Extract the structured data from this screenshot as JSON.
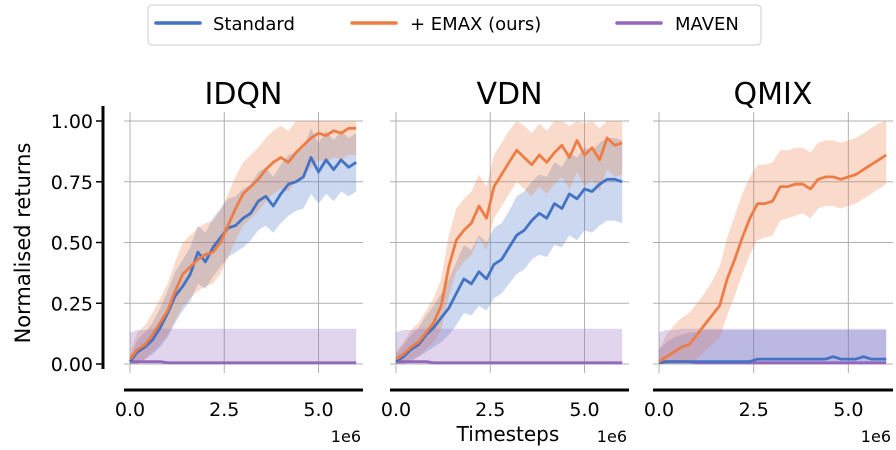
{
  "xlabel": "Timesteps",
  "ylabel": "Normalised returns",
  "legend": {
    "placement": "top-center",
    "entries": [
      {
        "name": "Standard",
        "color": "#4472c4"
      },
      {
        "name": "+ EMAX (ours)",
        "color": "#ed7d45"
      },
      {
        "name": "MAVEN",
        "color": "#9467bd"
      }
    ]
  },
  "chart_data": [
    {
      "type": "line",
      "title": "IDQN",
      "xlim": [
        0,
        6.1
      ],
      "ylim": [
        0,
        1.0
      ],
      "xticks": [
        "0.0",
        "2.5",
        "5.0"
      ],
      "xticks_values": [
        0,
        2.5,
        5.0
      ],
      "yticks": [
        "0.00",
        "0.25",
        "0.50",
        "0.75",
        "1.00"
      ],
      "yticks_values": [
        0,
        0.25,
        0.5,
        0.75,
        1.0
      ],
      "x_multiplier": "1e6",
      "grid": true,
      "x": [
        0,
        0.2,
        0.4,
        0.6,
        0.8,
        1.0,
        1.2,
        1.4,
        1.6,
        1.8,
        2.0,
        2.2,
        2.4,
        2.6,
        2.8,
        3.0,
        3.2,
        3.4,
        3.6,
        3.8,
        4.0,
        4.2,
        4.4,
        4.6,
        4.8,
        5.0,
        5.2,
        5.4,
        5.6,
        5.8,
        6.0
      ],
      "series": [
        {
          "name": "Standard",
          "color": "#4472c4",
          "values": [
            0.01,
            0.05,
            0.07,
            0.1,
            0.15,
            0.21,
            0.28,
            0.32,
            0.37,
            0.46,
            0.42,
            0.48,
            0.52,
            0.56,
            0.57,
            0.6,
            0.62,
            0.67,
            0.69,
            0.65,
            0.7,
            0.74,
            0.75,
            0.77,
            0.85,
            0.79,
            0.84,
            0.8,
            0.84,
            0.81,
            0.83
          ],
          "lower": [
            0,
            0,
            0.02,
            0.04,
            0.07,
            0.11,
            0.17,
            0.22,
            0.26,
            0.33,
            0.31,
            0.36,
            0.4,
            0.44,
            0.46,
            0.48,
            0.51,
            0.55,
            0.57,
            0.54,
            0.58,
            0.61,
            0.63,
            0.64,
            0.7,
            0.66,
            0.7,
            0.67,
            0.71,
            0.69,
            0.71
          ],
          "upper": [
            0.03,
            0.1,
            0.13,
            0.17,
            0.23,
            0.3,
            0.38,
            0.43,
            0.48,
            0.57,
            0.54,
            0.6,
            0.64,
            0.68,
            0.69,
            0.72,
            0.74,
            0.79,
            0.81,
            0.77,
            0.82,
            0.86,
            0.87,
            0.89,
            0.97,
            0.91,
            0.96,
            0.92,
            0.96,
            0.93,
            0.95
          ]
        },
        {
          "name": "+ EMAX (ours)",
          "color": "#ed7d45",
          "values": [
            0.02,
            0.06,
            0.08,
            0.12,
            0.17,
            0.22,
            0.3,
            0.37,
            0.4,
            0.43,
            0.45,
            0.46,
            0.5,
            0.57,
            0.64,
            0.7,
            0.73,
            0.76,
            0.8,
            0.83,
            0.85,
            0.83,
            0.87,
            0.9,
            0.93,
            0.95,
            0.94,
            0.96,
            0.95,
            0.97,
            0.97
          ],
          "lower": [
            0,
            0,
            0.02,
            0.05,
            0.08,
            0.12,
            0.18,
            0.24,
            0.27,
            0.3,
            0.32,
            0.33,
            0.37,
            0.44,
            0.51,
            0.57,
            0.6,
            0.63,
            0.67,
            0.7,
            0.72,
            0.71,
            0.75,
            0.78,
            0.81,
            0.84,
            0.83,
            0.85,
            0.84,
            0.86,
            0.86
          ],
          "upper": [
            0.05,
            0.13,
            0.16,
            0.21,
            0.27,
            0.33,
            0.42,
            0.5,
            0.53,
            0.56,
            0.58,
            0.59,
            0.63,
            0.7,
            0.77,
            0.83,
            0.86,
            0.89,
            0.93,
            0.96,
            0.98,
            0.96,
            1.0,
            1.0,
            1.0,
            1.0,
            1.0,
            1.0,
            1.0,
            1.0,
            1.0
          ]
        },
        {
          "name": "MAVEN",
          "color": "#9467bd",
          "values": [
            0.01,
            0.01,
            0.01,
            0.01,
            0.01,
            0.005,
            0.005,
            0.005,
            0.005,
            0.005,
            0.005,
            0.005,
            0.005,
            0.005,
            0.005,
            0.005,
            0.005,
            0.005,
            0.005,
            0.005,
            0.005,
            0.005,
            0.005,
            0.005,
            0.005,
            0.005,
            0.005,
            0.005,
            0.005,
            0.005,
            0.005
          ],
          "lower": [
            0,
            0,
            0,
            0,
            0,
            0,
            0,
            0,
            0,
            0,
            0,
            0,
            0,
            0,
            0,
            0,
            0,
            0,
            0,
            0,
            0,
            0,
            0,
            0,
            0,
            0,
            0,
            0,
            0,
            0,
            0
          ],
          "upper": [
            0.13,
            0.14,
            0.14,
            0.145,
            0.145,
            0.145,
            0.145,
            0.145,
            0.145,
            0.145,
            0.145,
            0.145,
            0.145,
            0.145,
            0.145,
            0.145,
            0.145,
            0.145,
            0.145,
            0.145,
            0.145,
            0.145,
            0.145,
            0.145,
            0.145,
            0.145,
            0.145,
            0.145,
            0.145,
            0.145,
            0.145
          ]
        }
      ]
    },
    {
      "type": "line",
      "title": "VDN",
      "xlim": [
        0,
        6.1
      ],
      "ylim": [
        0,
        1.0
      ],
      "xticks": [
        "0.0",
        "2.5",
        "5.0"
      ],
      "xticks_values": [
        0,
        2.5,
        5.0
      ],
      "yticks": [],
      "yticks_values": [
        0,
        0.25,
        0.5,
        0.75,
        1.0
      ],
      "x_multiplier": "1e6",
      "grid": true,
      "x": [
        0,
        0.2,
        0.4,
        0.6,
        0.8,
        1.0,
        1.2,
        1.4,
        1.6,
        1.8,
        2.0,
        2.2,
        2.4,
        2.6,
        2.8,
        3.0,
        3.2,
        3.4,
        3.6,
        3.8,
        4.0,
        4.2,
        4.4,
        4.6,
        4.8,
        5.0,
        5.2,
        5.4,
        5.6,
        5.8,
        6.0
      ],
      "series": [
        {
          "name": "Standard",
          "color": "#4472c4",
          "values": [
            0.01,
            0.03,
            0.06,
            0.08,
            0.12,
            0.15,
            0.19,
            0.23,
            0.29,
            0.35,
            0.33,
            0.38,
            0.35,
            0.41,
            0.43,
            0.48,
            0.53,
            0.55,
            0.59,
            0.62,
            0.6,
            0.66,
            0.64,
            0.7,
            0.68,
            0.72,
            0.71,
            0.74,
            0.76,
            0.76,
            0.75
          ],
          "lower": [
            0,
            0,
            0.01,
            0.03,
            0.05,
            0.07,
            0.09,
            0.12,
            0.16,
            0.21,
            0.2,
            0.24,
            0.22,
            0.27,
            0.29,
            0.33,
            0.37,
            0.39,
            0.43,
            0.45,
            0.44,
            0.49,
            0.48,
            0.53,
            0.51,
            0.55,
            0.54,
            0.57,
            0.59,
            0.59,
            0.58
          ],
          "upper": [
            0.04,
            0.08,
            0.12,
            0.15,
            0.2,
            0.24,
            0.29,
            0.35,
            0.42,
            0.49,
            0.47,
            0.53,
            0.5,
            0.56,
            0.58,
            0.63,
            0.69,
            0.71,
            0.75,
            0.78,
            0.77,
            0.83,
            0.81,
            0.87,
            0.85,
            0.89,
            0.88,
            0.91,
            0.93,
            0.93,
            0.92
          ]
        },
        {
          "name": "+ EMAX (ours)",
          "color": "#ed7d45",
          "values": [
            0.02,
            0.04,
            0.07,
            0.09,
            0.13,
            0.17,
            0.24,
            0.4,
            0.51,
            0.55,
            0.58,
            0.65,
            0.6,
            0.73,
            0.78,
            0.83,
            0.88,
            0.85,
            0.82,
            0.86,
            0.83,
            0.87,
            0.9,
            0.85,
            0.92,
            0.86,
            0.89,
            0.84,
            0.93,
            0.9,
            0.91
          ],
          "lower": [
            0,
            0,
            0.02,
            0.03,
            0.06,
            0.09,
            0.14,
            0.28,
            0.38,
            0.42,
            0.45,
            0.52,
            0.47,
            0.6,
            0.65,
            0.7,
            0.75,
            0.72,
            0.69,
            0.73,
            0.7,
            0.74,
            0.77,
            0.72,
            0.79,
            0.73,
            0.76,
            0.71,
            0.8,
            0.77,
            0.78
          ],
          "upper": [
            0.05,
            0.09,
            0.14,
            0.17,
            0.22,
            0.27,
            0.35,
            0.53,
            0.64,
            0.68,
            0.71,
            0.78,
            0.73,
            0.86,
            0.91,
            0.96,
            1.0,
            0.98,
            0.95,
            0.99,
            0.96,
            1.0,
            1.0,
            0.98,
            1.0,
            0.99,
            1.0,
            0.97,
            1.0,
            1.0,
            1.0
          ]
        },
        {
          "name": "MAVEN",
          "color": "#9467bd",
          "values": [
            0.01,
            0.01,
            0.01,
            0.01,
            0.01,
            0.005,
            0.005,
            0.005,
            0.005,
            0.005,
            0.005,
            0.005,
            0.005,
            0.005,
            0.005,
            0.005,
            0.005,
            0.005,
            0.005,
            0.005,
            0.005,
            0.005,
            0.005,
            0.005,
            0.005,
            0.005,
            0.005,
            0.005,
            0.005,
            0.005,
            0.005
          ],
          "lower": [
            0,
            0,
            0,
            0,
            0,
            0,
            0,
            0,
            0,
            0,
            0,
            0,
            0,
            0,
            0,
            0,
            0,
            0,
            0,
            0,
            0,
            0,
            0,
            0,
            0,
            0,
            0,
            0,
            0,
            0,
            0
          ],
          "upper": [
            0.13,
            0.14,
            0.14,
            0.145,
            0.145,
            0.145,
            0.145,
            0.145,
            0.145,
            0.145,
            0.145,
            0.145,
            0.145,
            0.145,
            0.145,
            0.145,
            0.145,
            0.145,
            0.145,
            0.145,
            0.145,
            0.145,
            0.145,
            0.145,
            0.145,
            0.145,
            0.145,
            0.145,
            0.145,
            0.145,
            0.145
          ]
        }
      ]
    },
    {
      "type": "line",
      "title": "QMIX",
      "xlim": [
        0,
        6.1
      ],
      "ylim": [
        0,
        1.0
      ],
      "xticks": [
        "0.0",
        "2.5",
        "5.0"
      ],
      "xticks_values": [
        0,
        2.5,
        5.0
      ],
      "yticks": [],
      "yticks_values": [
        0,
        0.25,
        0.5,
        0.75,
        1.0
      ],
      "x_multiplier": "1e6",
      "grid": true,
      "x": [
        0,
        0.2,
        0.4,
        0.6,
        0.8,
        1.0,
        1.2,
        1.4,
        1.6,
        1.8,
        2.0,
        2.2,
        2.4,
        2.6,
        2.8,
        3.0,
        3.2,
        3.4,
        3.6,
        3.8,
        4.0,
        4.2,
        4.4,
        4.6,
        4.8,
        5.0,
        5.2,
        5.4,
        5.6,
        5.8,
        6.0
      ],
      "series": [
        {
          "name": "Standard",
          "color": "#4472c4",
          "values": [
            0.005,
            0.01,
            0.01,
            0.01,
            0.01,
            0.01,
            0.01,
            0.01,
            0.01,
            0.01,
            0.01,
            0.01,
            0.01,
            0.02,
            0.02,
            0.02,
            0.02,
            0.02,
            0.02,
            0.02,
            0.02,
            0.02,
            0.02,
            0.03,
            0.02,
            0.02,
            0.02,
            0.03,
            0.02,
            0.02,
            0.02
          ],
          "lower": [
            0,
            0,
            0,
            0,
            0,
            0,
            0,
            0,
            0,
            0,
            0,
            0,
            0,
            0,
            0,
            0,
            0,
            0,
            0,
            0,
            0,
            0,
            0,
            0,
            0,
            0,
            0,
            0,
            0,
            0,
            0
          ],
          "upper": [
            0.06,
            0.09,
            0.11,
            0.12,
            0.13,
            0.13,
            0.14,
            0.14,
            0.14,
            0.14,
            0.14,
            0.14,
            0.14,
            0.14,
            0.14,
            0.14,
            0.14,
            0.14,
            0.14,
            0.14,
            0.14,
            0.14,
            0.14,
            0.14,
            0.14,
            0.14,
            0.14,
            0.14,
            0.14,
            0.14,
            0.14
          ]
        },
        {
          "name": "+ EMAX (ours)",
          "color": "#ed7d45",
          "values": [
            0.01,
            0.03,
            0.05,
            0.07,
            0.08,
            0.12,
            0.16,
            0.2,
            0.24,
            0.35,
            0.43,
            0.52,
            0.6,
            0.66,
            0.66,
            0.67,
            0.73,
            0.73,
            0.74,
            0.74,
            0.72,
            0.76,
            0.77,
            0.77,
            0.76,
            0.77,
            0.78,
            0.8,
            0.82,
            0.84,
            0.86
          ],
          "lower": [
            0,
            0,
            0,
            0,
            0,
            0.02,
            0.05,
            0.08,
            0.11,
            0.2,
            0.28,
            0.37,
            0.45,
            0.51,
            0.52,
            0.53,
            0.59,
            0.6,
            0.61,
            0.62,
            0.6,
            0.64,
            0.65,
            0.65,
            0.64,
            0.65,
            0.66,
            0.68,
            0.7,
            0.72,
            0.74
          ],
          "upper": [
            0.06,
            0.12,
            0.16,
            0.19,
            0.21,
            0.25,
            0.29,
            0.34,
            0.4,
            0.52,
            0.61,
            0.7,
            0.77,
            0.82,
            0.82,
            0.83,
            0.88,
            0.88,
            0.89,
            0.89,
            0.87,
            0.91,
            0.92,
            0.92,
            0.91,
            0.92,
            0.93,
            0.95,
            0.97,
            0.99,
            1.0
          ]
        },
        {
          "name": "MAVEN",
          "color": "#9467bd",
          "values": [
            0.01,
            0.01,
            0.01,
            0.01,
            0.01,
            0.005,
            0.005,
            0.005,
            0.005,
            0.005,
            0.005,
            0.005,
            0.005,
            0.005,
            0.005,
            0.005,
            0.005,
            0.005,
            0.005,
            0.005,
            0.005,
            0.005,
            0.005,
            0.005,
            0.005,
            0.005,
            0.005,
            0.005,
            0.005,
            0.005,
            0.005
          ],
          "lower": [
            0,
            0,
            0,
            0,
            0,
            0,
            0,
            0,
            0,
            0,
            0,
            0,
            0,
            0,
            0,
            0,
            0,
            0,
            0,
            0,
            0,
            0,
            0,
            0,
            0,
            0,
            0,
            0,
            0,
            0,
            0
          ],
          "upper": [
            0.13,
            0.14,
            0.14,
            0.145,
            0.145,
            0.145,
            0.145,
            0.145,
            0.145,
            0.145,
            0.145,
            0.145,
            0.145,
            0.145,
            0.145,
            0.145,
            0.145,
            0.145,
            0.145,
            0.145,
            0.145,
            0.145,
            0.145,
            0.145,
            0.145,
            0.145,
            0.145,
            0.145,
            0.145,
            0.145,
            0.145
          ]
        }
      ]
    }
  ]
}
